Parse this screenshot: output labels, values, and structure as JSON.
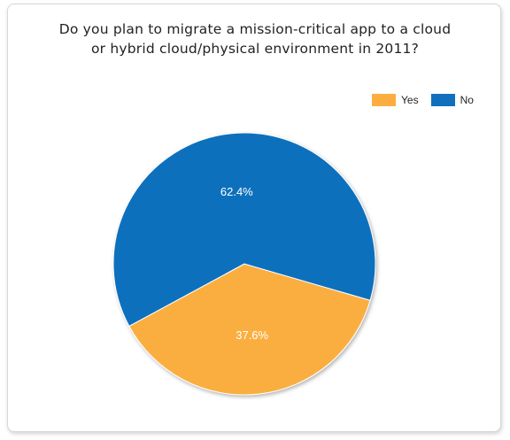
{
  "chart_data": {
    "type": "pie",
    "title_lines": [
      "Do you plan to migrate a mission-critical app to a cloud",
      "or hybrid cloud/physical environment in 2011?"
    ],
    "legend_position": "top-right",
    "slices": [
      {
        "name": "Yes",
        "value": 37.6,
        "label": "37.6%",
        "color": "#FBAE3F"
      },
      {
        "name": "No",
        "value": 62.4,
        "label": "62.4%",
        "color": "#1170BD"
      }
    ]
  }
}
